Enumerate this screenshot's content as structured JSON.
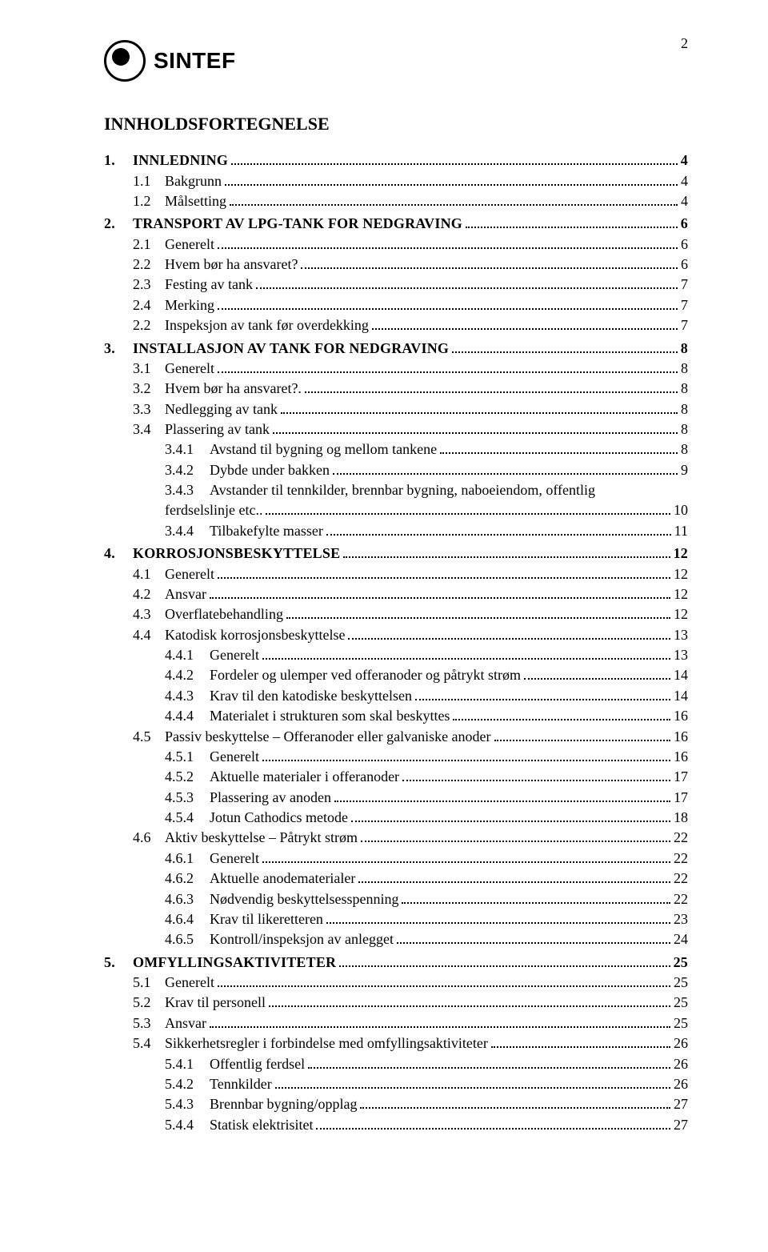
{
  "page_number": "2",
  "logo_text": "SINTEF",
  "toc_title": "INNHOLDSFORTEGNELSE",
  "entries": [
    {
      "level": 1,
      "num": "1.",
      "label": "INNLEDNING",
      "page": "4"
    },
    {
      "level": 2,
      "num": "1.1",
      "label": "Bakgrunn",
      "page": "4"
    },
    {
      "level": 2,
      "num": "1.2",
      "label": "Målsetting",
      "page": "4"
    },
    {
      "level": 1,
      "num": "2.",
      "label": "TRANSPORT AV LPG-TANK FOR NEDGRAVING",
      "page": "6"
    },
    {
      "level": 2,
      "num": "2.1",
      "label": "Generelt",
      "page": "6"
    },
    {
      "level": 2,
      "num": "2.2",
      "label": "Hvem bør ha ansvaret?",
      "page": "6"
    },
    {
      "level": 2,
      "num": "2.3",
      "label": "Festing av tank",
      "page": "7"
    },
    {
      "level": 2,
      "num": "2.4",
      "label": "Merking",
      "page": "7"
    },
    {
      "level": 2,
      "num": "2.2",
      "label": "Inspeksjon av tank før overdekking",
      "page": "7"
    },
    {
      "level": 1,
      "num": "3.",
      "label": "INSTALLASJON AV TANK FOR NEDGRAVING",
      "page": "8"
    },
    {
      "level": 2,
      "num": "3.1",
      "label": "Generelt",
      "page": "8"
    },
    {
      "level": 2,
      "num": "3.2",
      "label": "Hvem bør ha ansvaret?.",
      "page": "8"
    },
    {
      "level": 2,
      "num": "3.3",
      "label": "Nedlegging av tank",
      "page": "8"
    },
    {
      "level": 2,
      "num": "3.4",
      "label": "Plassering av tank",
      "page": "8"
    },
    {
      "level": 3,
      "num": "3.4.1",
      "label": "Avstand til bygning og mellom tankene",
      "page": "8"
    },
    {
      "level": 3,
      "num": "3.4.2",
      "label": "Dybde under bakken",
      "page": "9"
    },
    {
      "level": 3,
      "num": "3.4.3",
      "label": "Avstander til tennkilder, brennbar bygning, naboeiendom, offentlig",
      "page": ""
    },
    {
      "level": 3,
      "num": "",
      "label": "ferdselslinje etc..",
      "page": "10",
      "cont": true
    },
    {
      "level": 3,
      "num": "3.4.4",
      "label": "Tilbakefylte masser",
      "page": "11"
    },
    {
      "level": 1,
      "num": "4.",
      "label": "KORROSJONSBESKYTTELSE",
      "page": "12"
    },
    {
      "level": 2,
      "num": "4.1",
      "label": "Generelt",
      "page": "12"
    },
    {
      "level": 2,
      "num": "4.2",
      "label": "Ansvar",
      "page": "12"
    },
    {
      "level": 2,
      "num": "4.3",
      "label": "Overflatebehandling",
      "page": "12"
    },
    {
      "level": 2,
      "num": "4.4",
      "label": "Katodisk korrosjonsbeskyttelse",
      "page": "13"
    },
    {
      "level": 3,
      "num": "4.4.1",
      "label": "Generelt",
      "page": "13"
    },
    {
      "level": 3,
      "num": "4.4.2",
      "label": "Fordeler og ulemper ved offeranoder og påtrykt strøm",
      "page": "14"
    },
    {
      "level": 3,
      "num": "4.4.3",
      "label": "Krav til den katodiske beskyttelsen",
      "page": "14"
    },
    {
      "level": 3,
      "num": "4.4.4",
      "label": "Materialet i strukturen som skal beskyttes",
      "page": "16"
    },
    {
      "level": 2,
      "num": "4.5",
      "label": "Passiv beskyttelse – Offeranoder eller galvaniske anoder",
      "page": "16"
    },
    {
      "level": 3,
      "num": "4.5.1",
      "label": "Generelt",
      "page": "16"
    },
    {
      "level": 3,
      "num": "4.5.2",
      "label": "Aktuelle materialer i offeranoder",
      "page": "17"
    },
    {
      "level": 3,
      "num": "4.5.3",
      "label": "Plassering av anoden",
      "page": "17"
    },
    {
      "level": 3,
      "num": "4.5.4",
      "label": "Jotun Cathodics metode",
      "page": "18"
    },
    {
      "level": 2,
      "num": "4.6",
      "label": "Aktiv beskyttelse – Påtrykt strøm",
      "page": "22"
    },
    {
      "level": 3,
      "num": "4.6.1",
      "label": "Generelt",
      "page": "22"
    },
    {
      "level": 3,
      "num": "4.6.2",
      "label": "Aktuelle anodematerialer",
      "page": "22"
    },
    {
      "level": 3,
      "num": "4.6.3",
      "label": "Nødvendig beskyttelsesspenning",
      "page": "22"
    },
    {
      "level": 3,
      "num": "4.6.4",
      "label": "Krav til likeretteren",
      "page": "23"
    },
    {
      "level": 3,
      "num": "4.6.5",
      "label": "Kontroll/inspeksjon av anlegget",
      "page": "24"
    },
    {
      "level": 1,
      "num": "5.",
      "label": "OMFYLLINGSAKTIVITETER",
      "page": "25"
    },
    {
      "level": 2,
      "num": "5.1",
      "label": "Generelt",
      "page": "25"
    },
    {
      "level": 2,
      "num": "5.2",
      "label": "Krav til personell",
      "page": "25"
    },
    {
      "level": 2,
      "num": "5.3",
      "label": "Ansvar",
      "page": "25"
    },
    {
      "level": 2,
      "num": "5.4",
      "label": "Sikkerhetsregler i forbindelse med omfyllingsaktiviteter",
      "page": "26"
    },
    {
      "level": 3,
      "num": "5.4.1",
      "label": "Offentlig ferdsel",
      "page": "26"
    },
    {
      "level": 3,
      "num": "5.4.2",
      "label": "Tennkilder",
      "page": "26"
    },
    {
      "level": 3,
      "num": "5.4.3",
      "label": "Brennbar bygning/opplag",
      "page": "27"
    },
    {
      "level": 3,
      "num": "5.4.4",
      "label": "Statisk elektrisitet",
      "page": "27"
    }
  ]
}
